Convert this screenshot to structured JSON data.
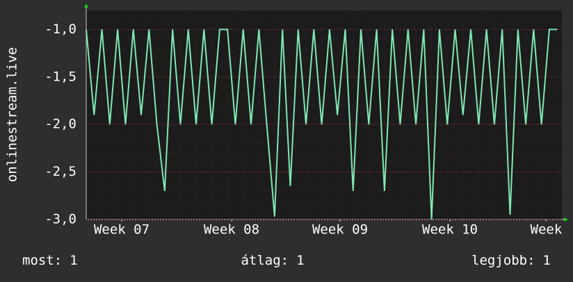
{
  "chart_data": {
    "type": "line",
    "y_label": "onlinestream.live",
    "x": [
      0,
      0.5,
      1,
      1.5,
      2,
      2.5,
      3,
      3.5,
      4,
      4.5,
      5,
      5.5,
      6,
      6.5,
      7,
      7.5,
      8,
      8.5,
      9,
      9.5,
      10,
      10.5,
      11,
      11.5,
      12,
      12.5,
      13,
      13.5,
      14,
      14.5,
      15,
      15.5,
      16,
      16.5,
      17,
      17.5,
      18,
      18.5,
      19,
      19.5,
      20,
      20.5,
      21,
      21.5,
      22,
      22.5,
      23,
      23.5,
      24,
      24.5,
      25,
      25.5,
      26,
      26.5,
      27,
      27.5,
      28,
      28.5,
      29,
      29.5,
      30
    ],
    "series": [
      {
        "name": "onlinestream.live",
        "color": "#7fe8b4",
        "values": [
          -1,
          -1.9,
          -1,
          -2,
          -1,
          -2,
          -1,
          -1.9,
          -1,
          -2,
          -2.7,
          -1,
          -2,
          -1,
          -2,
          -1,
          -2,
          -1,
          -1,
          -2,
          -1,
          -2,
          -1,
          -2,
          -2.97,
          -1,
          -2.65,
          -1,
          -2,
          -1,
          -2,
          -1,
          -1.9,
          -1,
          -2.7,
          -1,
          -2,
          -1,
          -2.7,
          -1,
          -2,
          -1,
          -2,
          -1,
          -3,
          -1,
          -2,
          -1,
          -1.9,
          -1,
          -2,
          -1,
          -2,
          -1,
          -2.95,
          -1,
          -2,
          -1,
          -2,
          -1,
          -1
        ]
      }
    ],
    "xlim": [
      0,
      30.3
    ],
    "xticks": [
      {
        "value": 2.26,
        "label": "Week 07"
      },
      {
        "value": 9.26,
        "label": "Week 08"
      },
      {
        "value": 16.17,
        "label": "Week 09"
      },
      {
        "value": 23.17,
        "label": "Week 10"
      },
      {
        "value": 29.3,
        "label": "Week"
      }
    ],
    "ylim": [
      -3,
      -0.8
    ],
    "yticks": [
      {
        "value": -3,
        "label": "-3,0"
      },
      {
        "value": -2.5,
        "label": "-2,5"
      },
      {
        "value": -2,
        "label": "-2,0"
      },
      {
        "value": -1.5,
        "label": "-1,5"
      },
      {
        "value": -1,
        "label": "-1,0"
      }
    ],
    "grid": true,
    "stats": [
      {
        "label": "most:",
        "value": 1
      },
      {
        "label": "átlag:",
        "value": 1
      },
      {
        "label": "legjobb:",
        "value": 1
      }
    ]
  }
}
